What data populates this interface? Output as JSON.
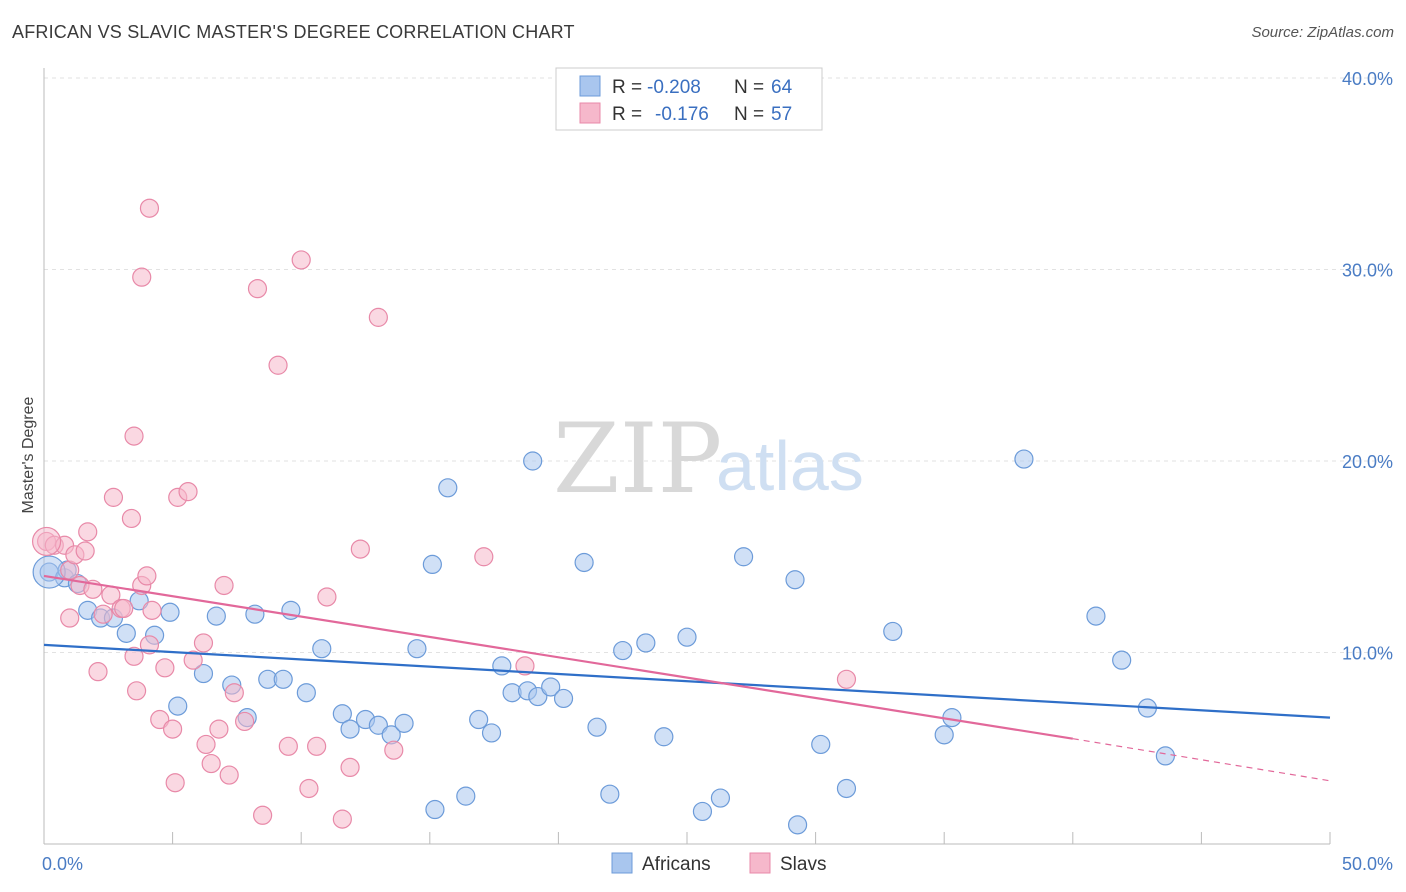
{
  "title": "AFRICAN VS SLAVIC MASTER'S DEGREE CORRELATION CHART",
  "source": "Source: ZipAtlas.com",
  "watermark": {
    "zip": "ZIP",
    "atlas": "atlas"
  },
  "legend": {
    "rows": [
      {
        "r_label": "R =",
        "r_value": "-0.208",
        "n_label": "N =",
        "n_value": "64"
      },
      {
        "r_label": "R =",
        "r_value": "-0.176",
        "n_label": "N =",
        "n_value": "57"
      }
    ]
  },
  "colors": {
    "africans_fill": "#a9c6ee",
    "africans_stroke": "#6c9bd9",
    "africans_line": "#2f6fc8",
    "slavs_fill": "#f6b8cb",
    "slavs_stroke": "#e889a8",
    "slavs_line": "#e2689a"
  },
  "chart_data": {
    "type": "scatter",
    "ylabel": "Master's Degree",
    "xlim": [
      0,
      50
    ],
    "ylim": [
      0,
      40
    ],
    "x_tick_labels": [
      {
        "v": 0,
        "label": "0.0%"
      },
      {
        "v": 50,
        "label": "50.0%"
      }
    ],
    "y_tick_labels": [
      {
        "v": 10,
        "label": "10.0%"
      },
      {
        "v": 20,
        "label": "20.0%"
      },
      {
        "v": 30,
        "label": "30.0%"
      },
      {
        "v": 40,
        "label": "40.0%"
      }
    ],
    "grid": "dashed horizontal",
    "legend_position": "top-center",
    "series": [
      {
        "name": "Africans",
        "trend": [
          [
            0,
            10.4
          ],
          [
            50,
            6.6
          ]
        ],
        "points": [
          [
            0.2,
            14.2
          ],
          [
            0.8,
            13.9
          ],
          [
            0.9,
            14.3
          ],
          [
            1.3,
            13.6
          ],
          [
            1.7,
            12.2
          ],
          [
            2.2,
            11.8
          ],
          [
            2.7,
            11.8
          ],
          [
            3.2,
            11.0
          ],
          [
            3.7,
            12.7
          ],
          [
            4.3,
            10.9
          ],
          [
            4.9,
            12.1
          ],
          [
            5.2,
            7.2
          ],
          [
            6.2,
            8.9
          ],
          [
            6.7,
            11.9
          ],
          [
            7.3,
            8.3
          ],
          [
            7.9,
            6.6
          ],
          [
            8.2,
            12.0
          ],
          [
            8.7,
            8.6
          ],
          [
            9.3,
            8.6
          ],
          [
            9.6,
            12.2
          ],
          [
            10.2,
            7.9
          ],
          [
            10.8,
            10.2
          ],
          [
            11.6,
            6.8
          ],
          [
            11.9,
            6.0
          ],
          [
            12.5,
            6.5
          ],
          [
            13.0,
            6.2
          ],
          [
            13.5,
            5.7
          ],
          [
            14.0,
            6.3
          ],
          [
            14.5,
            10.2
          ],
          [
            15.1,
            14.6
          ],
          [
            15.2,
            1.8
          ],
          [
            15.7,
            18.6
          ],
          [
            16.4,
            2.5
          ],
          [
            16.9,
            6.5
          ],
          [
            17.4,
            5.8
          ],
          [
            17.8,
            9.3
          ],
          [
            18.2,
            7.9
          ],
          [
            18.8,
            8.0
          ],
          [
            19.0,
            20.0
          ],
          [
            19.2,
            7.7
          ],
          [
            19.7,
            8.2
          ],
          [
            20.2,
            7.6
          ],
          [
            21.0,
            14.7
          ],
          [
            21.5,
            6.1
          ],
          [
            22.0,
            2.6
          ],
          [
            22.5,
            10.1
          ],
          [
            23.4,
            10.5
          ],
          [
            24.1,
            5.6
          ],
          [
            25.0,
            10.8
          ],
          [
            25.6,
            1.7
          ],
          [
            26.3,
            2.4
          ],
          [
            27.2,
            15.0
          ],
          [
            29.2,
            13.8
          ],
          [
            29.3,
            1.0
          ],
          [
            30.2,
            5.2
          ],
          [
            31.2,
            2.9
          ],
          [
            33.0,
            11.1
          ],
          [
            35.0,
            5.7
          ],
          [
            35.3,
            6.6
          ],
          [
            38.1,
            20.1
          ],
          [
            40.9,
            11.9
          ],
          [
            41.9,
            9.6
          ],
          [
            42.9,
            7.1
          ],
          [
            43.6,
            4.6
          ]
        ]
      },
      {
        "name": "Slavs",
        "trend": [
          [
            0,
            14.0
          ],
          [
            40,
            5.5
          ]
        ],
        "trend_extension": [
          [
            40,
            5.5
          ],
          [
            50,
            3.3
          ]
        ],
        "points": [
          [
            0.1,
            15.8
          ],
          [
            0.4,
            15.6
          ],
          [
            0.8,
            15.6
          ],
          [
            1.0,
            14.3
          ],
          [
            1.0,
            11.8
          ],
          [
            1.2,
            15.1
          ],
          [
            1.4,
            13.5
          ],
          [
            1.6,
            15.3
          ],
          [
            1.7,
            16.3
          ],
          [
            1.9,
            13.3
          ],
          [
            2.1,
            9.0
          ],
          [
            2.3,
            12.0
          ],
          [
            2.6,
            13.0
          ],
          [
            2.7,
            18.1
          ],
          [
            3.0,
            12.3
          ],
          [
            3.1,
            12.3
          ],
          [
            3.4,
            17.0
          ],
          [
            3.5,
            9.8
          ],
          [
            3.6,
            8.0
          ],
          [
            3.8,
            13.5
          ],
          [
            4.0,
            14.0
          ],
          [
            4.1,
            10.4
          ],
          [
            4.2,
            12.2
          ],
          [
            4.5,
            6.5
          ],
          [
            4.7,
            9.2
          ],
          [
            5.0,
            6.0
          ],
          [
            5.1,
            3.2
          ],
          [
            5.2,
            18.1
          ],
          [
            5.6,
            18.4
          ],
          [
            5.8,
            9.6
          ],
          [
            6.2,
            10.5
          ],
          [
            6.3,
            5.2
          ],
          [
            6.5,
            4.2
          ],
          [
            6.8,
            6.0
          ],
          [
            7.0,
            13.5
          ],
          [
            7.2,
            3.6
          ],
          [
            7.4,
            7.9
          ],
          [
            7.8,
            6.4
          ],
          [
            8.3,
            29.0
          ],
          [
            8.5,
            1.5
          ],
          [
            9.1,
            25.0
          ],
          [
            9.5,
            5.1
          ],
          [
            10.0,
            30.5
          ],
          [
            10.3,
            2.9
          ],
          [
            10.6,
            5.1
          ],
          [
            11.0,
            12.9
          ],
          [
            11.6,
            1.3
          ],
          [
            11.9,
            4.0
          ],
          [
            12.3,
            15.4
          ],
          [
            13.0,
            27.5
          ],
          [
            13.6,
            4.9
          ],
          [
            17.1,
            15.0
          ],
          [
            18.7,
            9.3
          ],
          [
            31.2,
            8.6
          ],
          [
            4.1,
            33.2
          ],
          [
            3.8,
            29.6
          ],
          [
            3.5,
            21.3
          ]
        ]
      }
    ]
  },
  "bottom_legend": [
    {
      "label": "Africans"
    },
    {
      "label": "Slavs"
    }
  ]
}
